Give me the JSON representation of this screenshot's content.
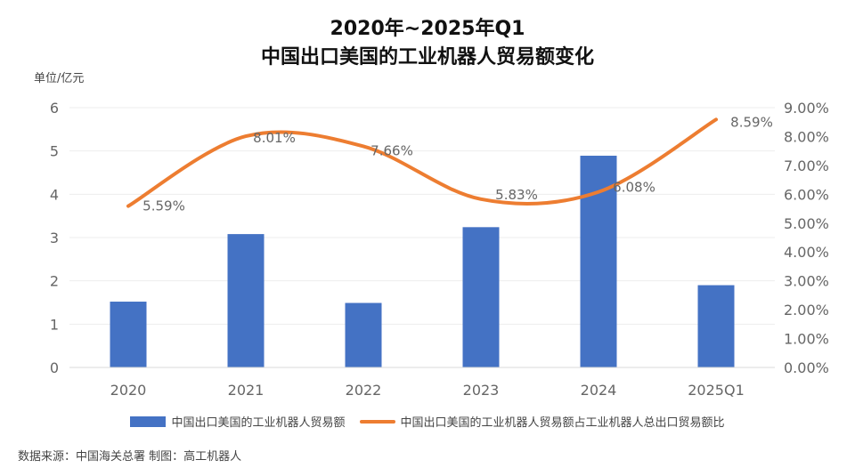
{
  "title_line1": "2020年~2025年Q1",
  "title_line2": "中国出口美国的工业机器人贸易额变化",
  "unit_label": "单位/亿元",
  "source": "数据来源：中国海关总署   制图：高工机器人",
  "colors": {
    "bar": "#4472C4",
    "line": "#ED7D31",
    "axis_text": "#666666",
    "grid": "#EDEDED"
  },
  "chart_data": {
    "type": "bar",
    "categories": [
      "2020",
      "2021",
      "2022",
      "2023",
      "2024",
      "2025Q1"
    ],
    "series": [
      {
        "name": "中国出口美国的工业机器人贸易额",
        "type": "bar",
        "axis": "left",
        "values": [
          1.52,
          3.08,
          1.49,
          3.24,
          4.89,
          1.9
        ]
      },
      {
        "name": "中国出口美国的工业机器人贸易额占工业机器人总出口贸易额比",
        "type": "line",
        "axis": "right",
        "values": [
          5.59,
          8.01,
          7.66,
          5.83,
          6.08,
          8.59
        ],
        "labels": [
          "5.59%",
          "8.01%",
          "7.66%",
          "5.83%",
          "6.08%",
          "8.59%"
        ]
      }
    ],
    "y_left": {
      "min": 0,
      "max": 6,
      "ticks": [
        "0",
        "1",
        "2",
        "3",
        "4",
        "5",
        "6"
      ]
    },
    "y_right": {
      "min": 0,
      "max": 9,
      "ticks": [
        "0.00%",
        "1.00%",
        "2.00%",
        "3.00%",
        "4.00%",
        "5.00%",
        "6.00%",
        "7.00%",
        "8.00%",
        "9.00%"
      ]
    },
    "grid": true,
    "legend": "bottom"
  }
}
